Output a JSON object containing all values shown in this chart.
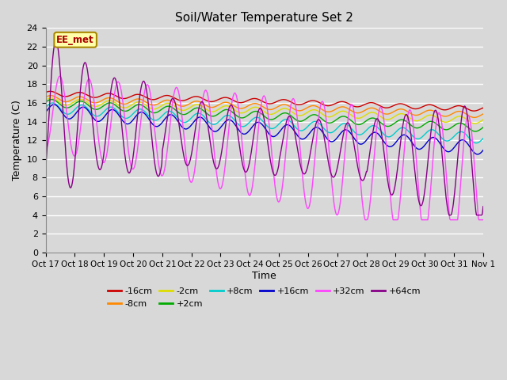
{
  "title": "Soil/Water Temperature Set 2",
  "xlabel": "Time",
  "ylabel": "Temperature (C)",
  "ylim": [
    0,
    24
  ],
  "yticks": [
    0,
    2,
    4,
    6,
    8,
    10,
    12,
    14,
    16,
    18,
    20,
    22,
    24
  ],
  "xtick_labels": [
    "Oct 17",
    "Oct 18",
    "Oct 19",
    "Oct 20",
    "Oct 21",
    "Oct 22",
    "Oct 23",
    "Oct 24",
    "Oct 25",
    "Oct 26",
    "Oct 27",
    "Oct 28",
    "Oct 29",
    "Oct 30",
    "Oct 31",
    "Nov 1"
  ],
  "background_color": "#d8d8d8",
  "plot_bg_color": "#d8d8d8",
  "grid_color": "#ffffff",
  "series": [
    {
      "label": "-16cm",
      "color": "#cc0000"
    },
    {
      "label": "-8cm",
      "color": "#ff8800"
    },
    {
      "label": "-2cm",
      "color": "#dddd00"
    },
    {
      "label": "+2cm",
      "color": "#00aa00"
    },
    {
      "label": "+8cm",
      "color": "#00cccc"
    },
    {
      "label": "+16cm",
      "color": "#0000cc"
    },
    {
      "label": "+32cm",
      "color": "#ff44ff"
    },
    {
      "label": "+64cm",
      "color": "#880088"
    }
  ],
  "annotation_text": "EE_met",
  "annotation_color": "#aa0000",
  "annotation_bg": "#ffffaa",
  "annotation_border": "#aa8800",
  "n_days": 15,
  "n_pts": 720
}
